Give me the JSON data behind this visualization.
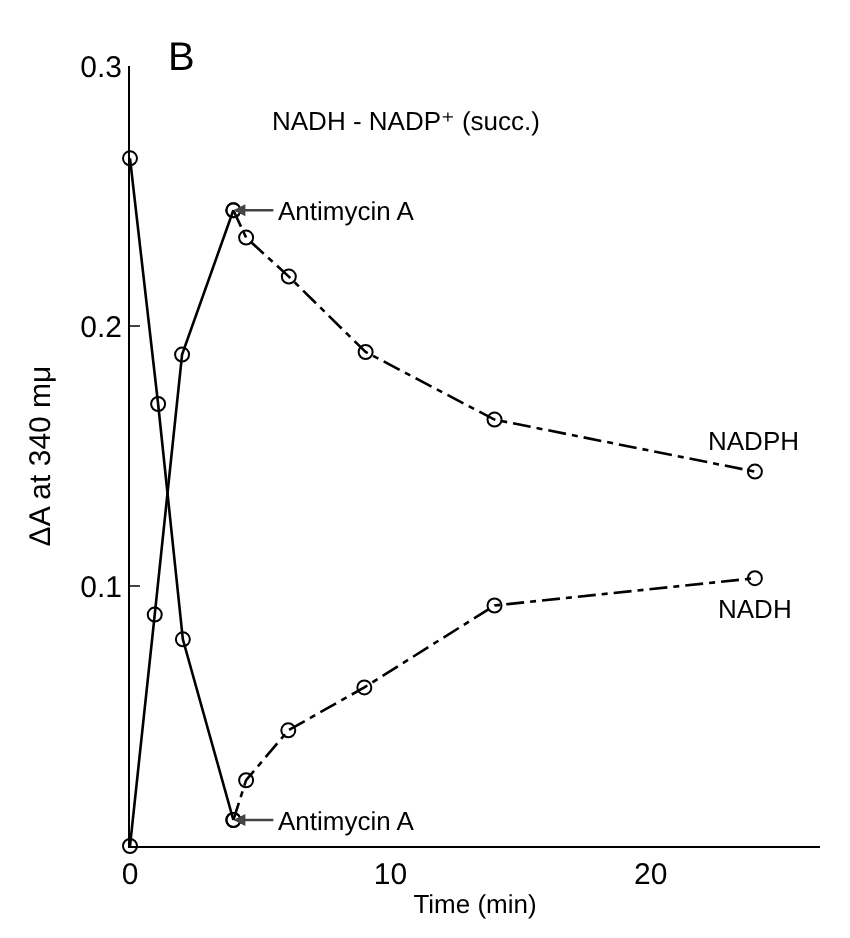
{
  "chart_data": {
    "type": "line",
    "title": "B",
    "subtitle": "NADH - NADP⁺ (succ.)",
    "xlabel": "Time (min)",
    "ylabel": "ΔA at 340 mμ",
    "xlim": [
      0,
      26.5
    ],
    "xticks": [
      0,
      10,
      20
    ],
    "ylim": [
      0,
      0.3
    ],
    "yticks": [
      0.1,
      0.2,
      0.3
    ],
    "grid": false,
    "legend": false,
    "marker": "circle",
    "series": [
      {
        "color": "#000000",
        "line_style": "solid",
        "x": [
          0,
          0.95,
          2.0,
          3.97
        ],
        "values": [
          0,
          0.089,
          0.189,
          0.2445
        ]
      },
      {
        "name": "NADPH",
        "color": "#000000",
        "line_style": "dashed",
        "x": [
          3.97,
          4.46,
          6.1,
          9.05,
          14.0,
          24.0
        ],
        "values": [
          0.2445,
          0.234,
          0.219,
          0.19,
          0.164,
          0.144
        ]
      },
      {
        "color": "#000000",
        "line_style": "solid",
        "x": [
          0,
          1.08,
          2.03,
          3.97
        ],
        "values": [
          0.2645,
          0.17,
          0.0795,
          0.01
        ]
      },
      {
        "name": "NADH",
        "color": "#000000",
        "line_style": "dashed",
        "x": [
          3.97,
          4.46,
          6.08,
          9.0,
          14.0,
          24.0
        ],
        "values": [
          0.01,
          0.0253,
          0.0445,
          0.061,
          0.0925,
          0.103
        ]
      }
    ],
    "annotations": [
      {
        "text": "Antimycin A",
        "x": 3.97,
        "y": 0.2445
      },
      {
        "text": "Antimycin A",
        "x": 3.97,
        "y": 0.01
      }
    ]
  }
}
